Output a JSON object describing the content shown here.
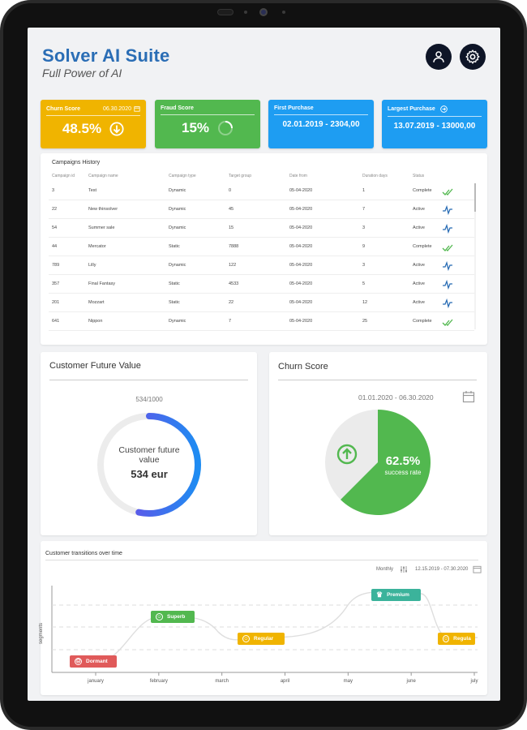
{
  "app": {
    "title": "Solver AI Suite",
    "subtitle": "Full Power of AI"
  },
  "header": {
    "user_icon": "user-icon",
    "settings_icon": "gear-icon"
  },
  "kpis": [
    {
      "label": "Churn Score",
      "date": "06.30.2020",
      "value": "48.5%",
      "color": "#f0b400",
      "icon": "arrow-down-circle-icon"
    },
    {
      "label": "Fraud Score",
      "value": "15%",
      "color": "#52b84f",
      "icon": "spinner-icon"
    },
    {
      "label": "First Purchase",
      "value": "02.01.2019 -  2304,00",
      "color": "#1e9df2"
    },
    {
      "label": "Largest Purchase",
      "value": "13.07.2019 - 13000,00",
      "color": "#1e9df2",
      "icon": "arrow-right-circle-icon"
    }
  ],
  "campaigns": {
    "title": "Campaigns History",
    "columns": [
      "Campaign id",
      "Campaign name",
      "Campaign type",
      "Target group",
      "Date from",
      "Duration days",
      "Status"
    ],
    "rows": [
      {
        "id": "3",
        "name": "Test",
        "type": "Dynamic",
        "target": "0",
        "date": "05-04-2020",
        "duration": "1",
        "status": "Complete"
      },
      {
        "id": "22",
        "name": "New thinsolver",
        "type": "Dynamic",
        "target": "45",
        "date": "05-04-2020",
        "duration": "7",
        "status": "Active"
      },
      {
        "id": "54",
        "name": "Summer sale",
        "type": "Dynamic",
        "target": "15",
        "date": "05-04-2020",
        "duration": "3",
        "status": "Active"
      },
      {
        "id": "44",
        "name": "Mercator",
        "type": "Static",
        "target": "7888",
        "date": "05-04-2020",
        "duration": "9",
        "status": "Complete"
      },
      {
        "id": "789",
        "name": "Lilly",
        "type": "Dynamic",
        "target": "122",
        "date": "05-04-2020",
        "duration": "3",
        "status": "Active"
      },
      {
        "id": "357",
        "name": "Final Fantasy",
        "type": "Static",
        "target": "4533",
        "date": "05-04-2020",
        "duration": "5",
        "status": "Active"
      },
      {
        "id": "201",
        "name": "Mozzart",
        "type": "Static",
        "target": "22",
        "date": "05-04-2020",
        "duration": "12",
        "status": "Active"
      },
      {
        "id": "641",
        "name": "Nippon",
        "type": "Dynamic",
        "target": "7",
        "date": "05-04-2020",
        "duration": "25",
        "status": "Complete"
      }
    ],
    "status_colors": {
      "Complete": "#52b84f",
      "Active": "#2a6db5"
    }
  },
  "cfv": {
    "title": "Customer Future Value",
    "ratio": "534/1000",
    "label": "Customer future value",
    "value": "534 eur",
    "fraction": 0.534
  },
  "churn": {
    "title": "Churn Score",
    "range": "01.01.2020 - 06.30.2020",
    "value": "62.5%",
    "caption": "success rate",
    "fraction": 0.625,
    "color": "#52b84f"
  },
  "transitions": {
    "title": "Customer transitions over time",
    "granularity": "Monthly",
    "range": "12.15.2019 - 07.30.2020",
    "ylabel": "segments",
    "months": [
      "january",
      "february",
      "march",
      "april",
      "may",
      "june",
      "july"
    ],
    "badges": [
      {
        "label": "Dormant",
        "color": "#e05a5a",
        "icon": "sad-face-icon"
      },
      {
        "label": "Superb",
        "color": "#52b84f",
        "icon": "smile-icon"
      },
      {
        "label": "Regular",
        "color": "#f0b400",
        "icon": "smile-icon"
      },
      {
        "label": "Premium",
        "color": "#3bb39b",
        "icon": "crown-icon"
      },
      {
        "label": "Regula",
        "color": "#f0b400",
        "icon": "smile-icon"
      }
    ]
  }
}
